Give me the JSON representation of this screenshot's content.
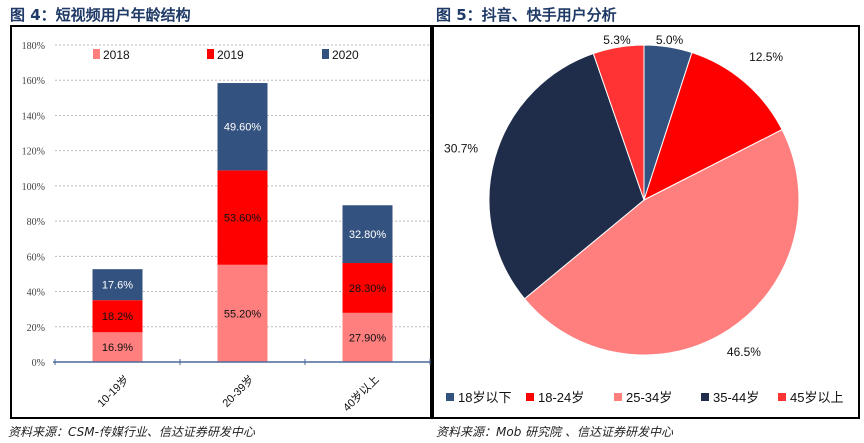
{
  "left": {
    "title": "图 4：短视频用户年龄结构",
    "source": "资料来源：CSM-传媒行业、信达证券研发中心"
  },
  "right": {
    "title": "图 5：抖音、快手用户分析",
    "source": "资料来源：Mob 研究院 、信达证券研发中心"
  },
  "chart_data": [
    {
      "type": "bar",
      "stacked": true,
      "title": "短视频用户年龄结构",
      "categories": [
        "10-19岁",
        "20-39岁",
        "40岁以上"
      ],
      "series": [
        {
          "name": "2018",
          "color": "#FF7F7F",
          "values": [
            16.9,
            55.2,
            27.9
          ],
          "labels": [
            "16.9%",
            "55.20%",
            "27.90%"
          ]
        },
        {
          "name": "2019",
          "color": "#FF0000",
          "values": [
            18.2,
            53.6,
            28.3
          ],
          "labels": [
            "18.2%",
            "53.60%",
            "28.30%"
          ]
        },
        {
          "name": "2020",
          "color": "#34527F",
          "values": [
            17.6,
            49.6,
            32.8
          ],
          "labels": [
            "17.6%",
            "49.60%",
            "32.80%"
          ]
        }
      ],
      "yticks": [
        "0%",
        "20%",
        "40%",
        "60%",
        "80%",
        "100%",
        "120%",
        "140%",
        "160%",
        "180%"
      ],
      "ylim": [
        0,
        180
      ],
      "grid": true,
      "legend": "top"
    },
    {
      "type": "pie",
      "title": "抖音、快手用户分析",
      "slices": [
        {
          "name": "18岁以下",
          "value": 5.0,
          "label": "5.0%",
          "color": "#34527F"
        },
        {
          "name": "18-24岁",
          "value": 12.5,
          "label": "12.5%",
          "color": "#FF0000"
        },
        {
          "name": "25-34岁",
          "value": 46.5,
          "label": "46.5%",
          "color": "#FF7F7F"
        },
        {
          "name": "35-44岁",
          "value": 30.7,
          "label": "30.7%",
          "color": "#1F2D4A"
        },
        {
          "name": "45岁以上",
          "value": 5.3,
          "label": "5.3%",
          "color": "#FF3333"
        }
      ],
      "legend": "bottom"
    }
  ]
}
